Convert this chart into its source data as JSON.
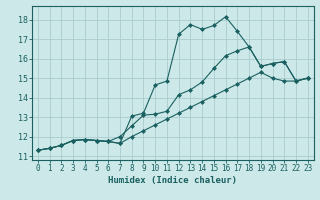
{
  "xlabel": "Humidex (Indice chaleur)",
  "bg_color": "#cce8e8",
  "grid_color": "#aacccc",
  "line_color": "#1a6060",
  "xlim": [
    -0.5,
    23.5
  ],
  "ylim": [
    10.8,
    18.7
  ],
  "xticks": [
    0,
    1,
    2,
    3,
    4,
    5,
    6,
    7,
    8,
    9,
    10,
    11,
    12,
    13,
    14,
    15,
    16,
    17,
    18,
    19,
    20,
    21,
    22,
    23
  ],
  "yticks": [
    11,
    12,
    13,
    14,
    15,
    16,
    17,
    18
  ],
  "line1_x": [
    0,
    1,
    2,
    3,
    4,
    5,
    6,
    7,
    8,
    9,
    10,
    11,
    12,
    13,
    14,
    15,
    16,
    17,
    18,
    19,
    20,
    21,
    22,
    23
  ],
  "line1_y": [
    11.3,
    11.4,
    11.55,
    11.8,
    11.85,
    11.8,
    11.75,
    11.65,
    13.05,
    13.2,
    14.65,
    14.85,
    17.25,
    17.75,
    17.5,
    17.7,
    18.15,
    17.4,
    16.6,
    15.6,
    15.75,
    15.85,
    14.85,
    15.0
  ],
  "line2_x": [
    0,
    1,
    2,
    3,
    4,
    5,
    6,
    7,
    8,
    9,
    10,
    11,
    12,
    13,
    14,
    15,
    16,
    17,
    18,
    19,
    20,
    21,
    22,
    23
  ],
  "line2_y": [
    11.3,
    11.4,
    11.55,
    11.8,
    11.85,
    11.8,
    11.75,
    12.0,
    12.55,
    13.1,
    13.15,
    13.3,
    14.15,
    14.4,
    14.8,
    15.5,
    16.15,
    16.4,
    16.6,
    15.6,
    15.75,
    15.85,
    14.85,
    15.0
  ],
  "line3_x": [
    0,
    1,
    2,
    3,
    4,
    5,
    6,
    7,
    8,
    9,
    10,
    11,
    12,
    13,
    14,
    15,
    16,
    17,
    18,
    19,
    20,
    21,
    22,
    23
  ],
  "line3_y": [
    11.3,
    11.4,
    11.55,
    11.8,
    11.85,
    11.8,
    11.75,
    11.65,
    12.0,
    12.3,
    12.6,
    12.9,
    13.2,
    13.5,
    13.8,
    14.1,
    14.4,
    14.7,
    15.0,
    15.3,
    15.0,
    14.85,
    14.85,
    15.0
  ]
}
